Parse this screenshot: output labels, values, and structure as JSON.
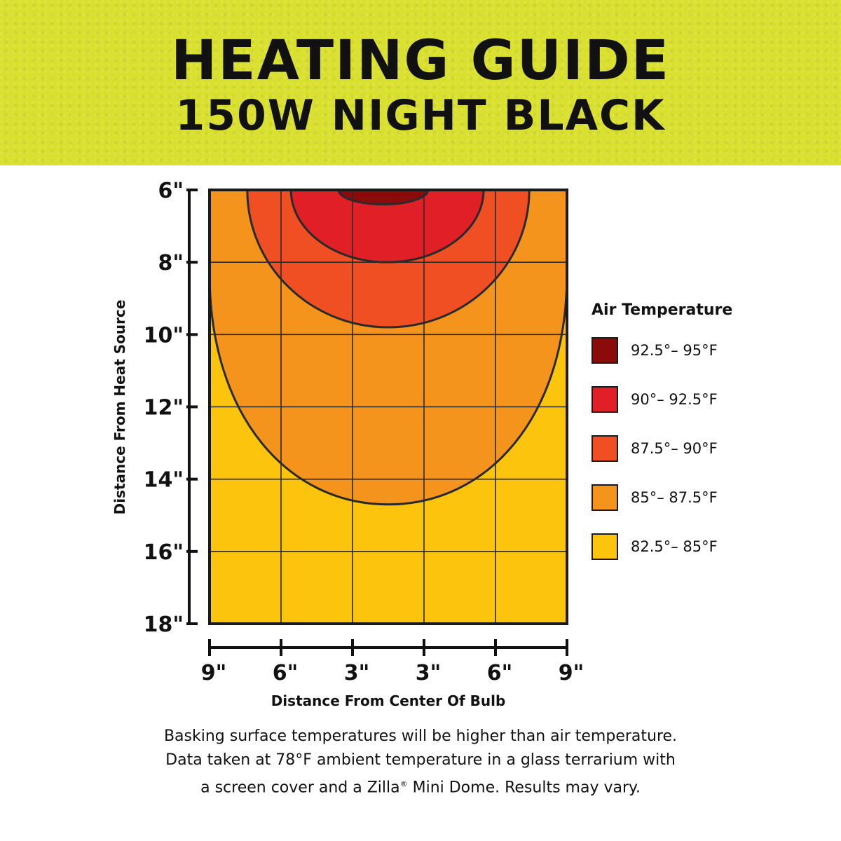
{
  "header": {
    "title": "HEATING GUIDE",
    "subtitle": "150W NIGHT BLACK",
    "background_color": "#d9e02e"
  },
  "legend": {
    "title": "Air Temperature",
    "items": [
      {
        "label": "92.5°– 95°F",
        "color": "#8b0a0a"
      },
      {
        "label": "90°– 92.5°F",
        "color": "#e01f26"
      },
      {
        "label": "87.5°– 90°F",
        "color": "#f04e23"
      },
      {
        "label": "85°– 87.5°F",
        "color": "#f5941d"
      },
      {
        "label": "82.5°– 85°F",
        "color": "#fcc40c"
      }
    ]
  },
  "footnote": {
    "line1": "Basking surface temperatures will be higher than air temperature.",
    "line2": "Data taken at 78°F ambient temperature in a glass terrarium with",
    "line3_before": "a screen cover and a Zilla",
    "line3_mark": "®",
    "line3_after": " Mini Dome. Results may vary."
  },
  "chart_data": {
    "type": "heatmap",
    "xlabel": "Distance From Center Of Bulb",
    "ylabel": "Distance From Heat Source",
    "x_range": [
      -9,
      9
    ],
    "y_range": [
      6,
      18
    ],
    "y_ticks": [
      6,
      8,
      10,
      12,
      14,
      16,
      18
    ],
    "y_tick_labels": [
      "6\"",
      "8\"",
      "10\"",
      "12\"",
      "14\"",
      "16\"",
      "18\""
    ],
    "x_ticks": [
      -9,
      -6,
      -3,
      3,
      6,
      9
    ],
    "x_tick_labels": [
      "9\"",
      "6\"",
      "3\"",
      "3\"",
      "6\"",
      "9\""
    ],
    "x_grid": [
      -9,
      -5.4,
      -1.8,
      1.8,
      5.4,
      9
    ],
    "y_grid": [
      6,
      8,
      10,
      12,
      14,
      16,
      18
    ],
    "grid": true,
    "legend_position": "right",
    "background_zone_color": "#fcc40c",
    "zones": [
      {
        "range": "85°– 87.5°F",
        "color": "#f5941d",
        "x_min": -9,
        "x_max": 9,
        "y_max": 14.7,
        "sides_bottom": 8.3
      },
      {
        "range": "87.5°– 90°F",
        "color": "#f04e23",
        "x_min": -7.1,
        "x_max": 7.1,
        "y_max": 9.8
      },
      {
        "range": "90°– 92.5°F",
        "color": "#e01f26",
        "x_min": -4.9,
        "x_max": 4.8,
        "y_max": 8.0
      },
      {
        "range": "92.5°– 95°F",
        "color": "#8b0a0a",
        "x_min": -2.5,
        "x_max": 2.0,
        "y_max": 6.4
      }
    ]
  }
}
